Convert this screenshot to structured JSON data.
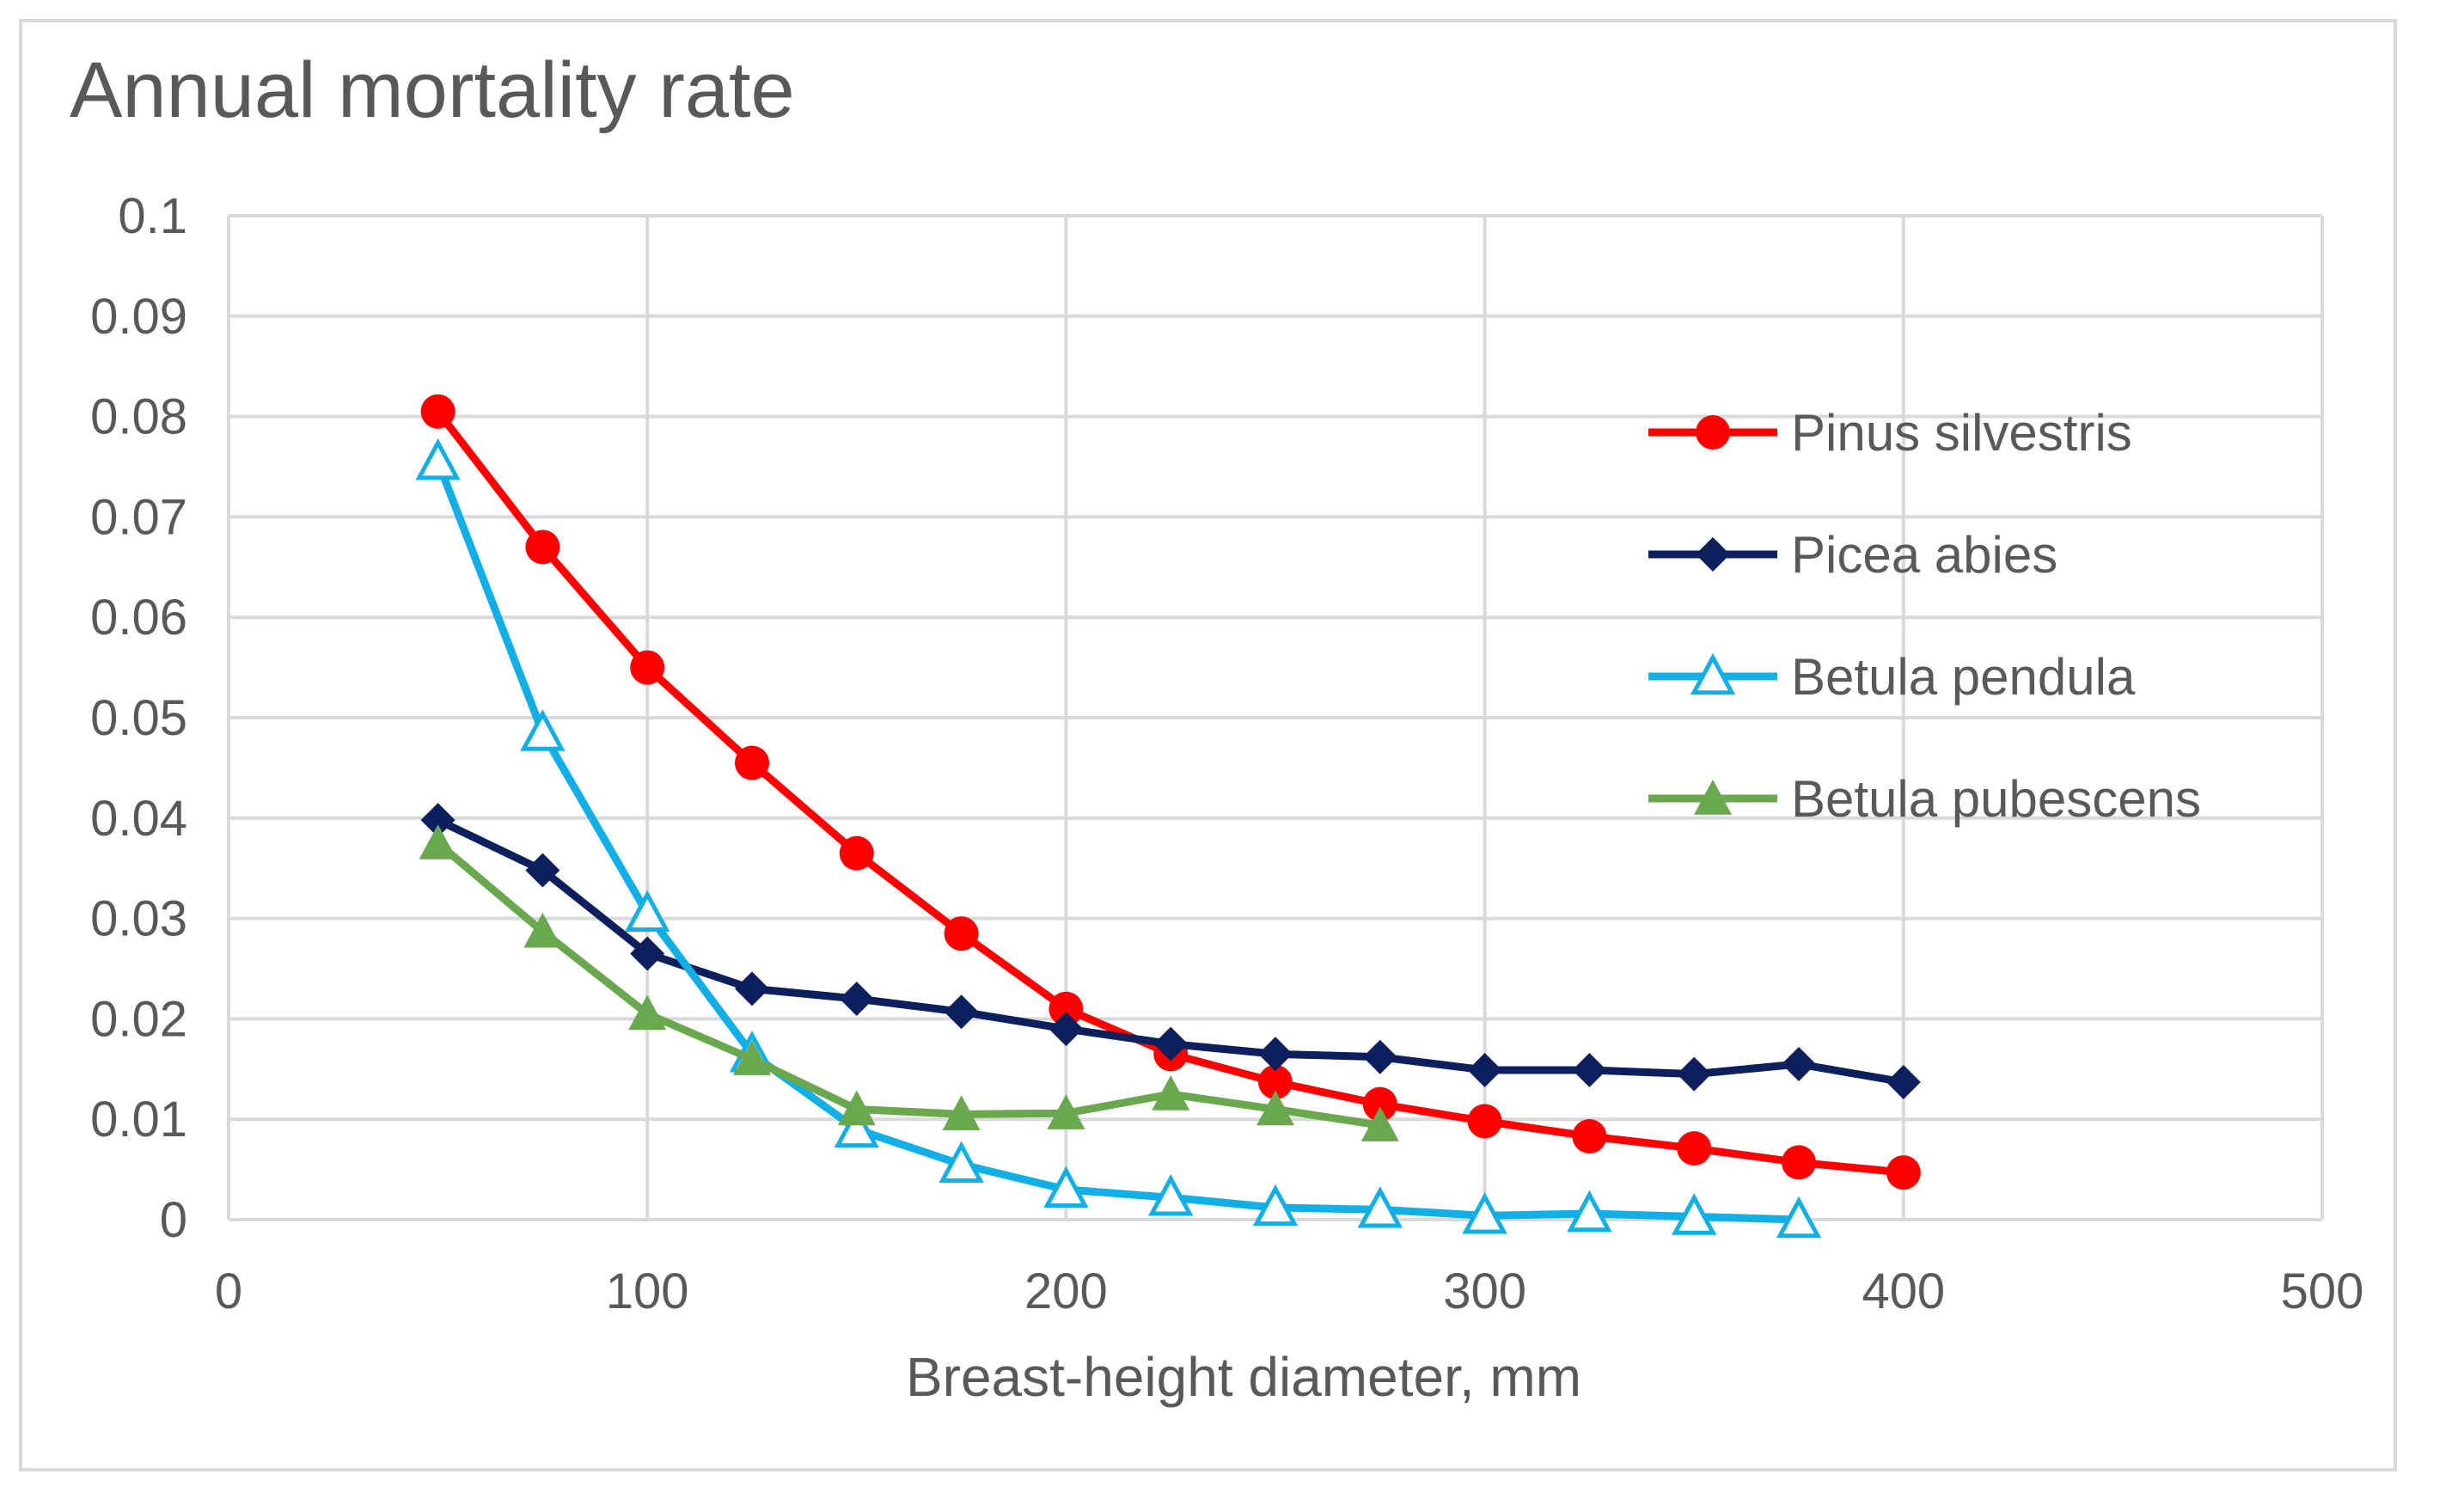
{
  "chart_data": {
    "type": "line",
    "title": "Annual mortality rate",
    "xlabel": "Breast-height diameter, mm",
    "ylabel": "",
    "xlim": [
      0,
      500
    ],
    "ylim": [
      0,
      0.1
    ],
    "xticks": [
      0,
      100,
      200,
      300,
      400,
      500
    ],
    "yticks": [
      0,
      0.01,
      0.02,
      0.03,
      0.04,
      0.05,
      0.06,
      0.07,
      0.08,
      0.09,
      0.1
    ],
    "xtick_labels": [
      "0",
      "100",
      "200",
      "300",
      "400",
      "500"
    ],
    "ytick_labels": [
      "0",
      "0.01",
      "0.02",
      "0.03",
      "0.04",
      "0.05",
      "0.06",
      "0.07",
      "0.08",
      "0.09",
      "0.1"
    ],
    "grid": true,
    "legend_position": "top-right",
    "series": [
      {
        "name": "Pinus silvestris",
        "color": "#ff0000",
        "marker": "circle",
        "x": [
          50,
          75,
          100,
          125,
          150,
          175,
          200,
          225,
          250,
          275,
          300,
          325,
          350,
          375,
          400
        ],
        "values": [
          0.0805,
          0.067,
          0.055,
          0.0455,
          0.0365,
          0.0285,
          0.021,
          0.0165,
          0.0137,
          0.0115,
          0.0098,
          0.0083,
          0.0071,
          0.0057,
          0.0047
        ]
      },
      {
        "name": "Picea abies",
        "color": "#0d1f5c",
        "marker": "diamond",
        "x": [
          50,
          75,
          100,
          125,
          150,
          175,
          200,
          225,
          250,
          275,
          300,
          325,
          350,
          375,
          400
        ],
        "values": [
          0.0398,
          0.0348,
          0.0265,
          0.023,
          0.022,
          0.0207,
          0.019,
          0.0175,
          0.0165,
          0.0162,
          0.0149,
          0.0149,
          0.0145,
          0.0155,
          0.0137
        ]
      },
      {
        "name": "Betula pendula",
        "color": "#12aee6",
        "marker": "triangle-open",
        "x": [
          50,
          75,
          100,
          125,
          150,
          175,
          200,
          225,
          250,
          275,
          300,
          325,
          350,
          375
        ],
        "values": [
          0.0755,
          0.0485,
          0.0305,
          0.0165,
          0.009,
          0.0055,
          0.003,
          0.0022,
          0.0012,
          0.001,
          0.0004,
          0.0006,
          0.0003,
          0.0
        ]
      },
      {
        "name": "Betula pubescens",
        "color": "#6aa84f",
        "marker": "triangle",
        "x": [
          50,
          75,
          100,
          125,
          150,
          175,
          200,
          225,
          250,
          275
        ],
        "values": [
          0.0375,
          0.0287,
          0.0205,
          0.016,
          0.011,
          0.0105,
          0.0106,
          0.0125,
          0.011,
          0.0094
        ]
      }
    ]
  }
}
